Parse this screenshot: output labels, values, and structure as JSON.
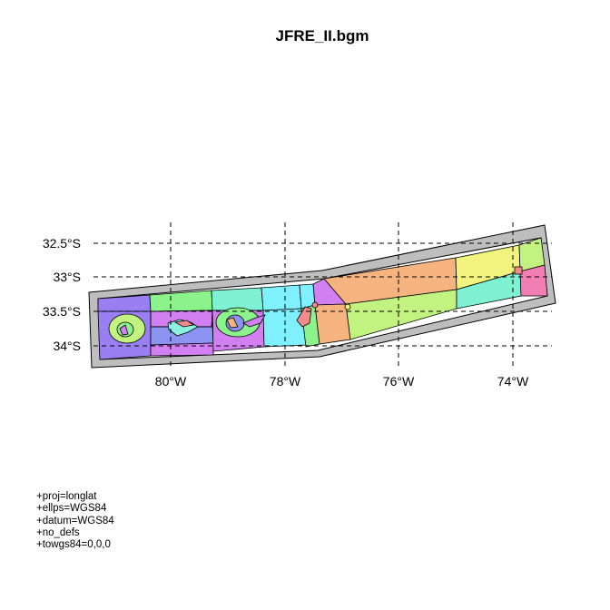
{
  "title": "JFRE_II.bgm",
  "axes": {
    "lat_ticks": [
      {
        "label": "32.5°S",
        "lat": -32.5
      },
      {
        "label": "33°S",
        "lat": -33.0
      },
      {
        "label": "33.5°S",
        "lat": -33.5
      },
      {
        "label": "34°S",
        "lat": -34.0
      }
    ],
    "lon_ticks": [
      {
        "label": "80°W",
        "lon": -80
      },
      {
        "label": "78°W",
        "lon": -78
      },
      {
        "label": "76°W",
        "lon": -76
      },
      {
        "label": "74°W",
        "lon": -74
      }
    ],
    "gridlines": "dashed"
  },
  "proj_lines": [
    "+proj=longlat",
    "+ellps=WGS84",
    "+datum=WGS84",
    "+no_defs",
    "+towgs84=0,0,0"
  ],
  "colors": {
    "boundary_box": "#bebebe",
    "lilac": "#c58cf2",
    "green": "#8cf28c",
    "aqua": "#7ff2d4",
    "cyan": "#7ff0ff",
    "violet": "#d27ff2",
    "blue": "#8c94f2",
    "lime": "#c2f27f",
    "orange": "#f5b47f",
    "yellow": "#f2f27f",
    "pink": "#f27fb4",
    "salmon": "#f28c8c",
    "purple_blue": "#9a7ff2"
  }
}
